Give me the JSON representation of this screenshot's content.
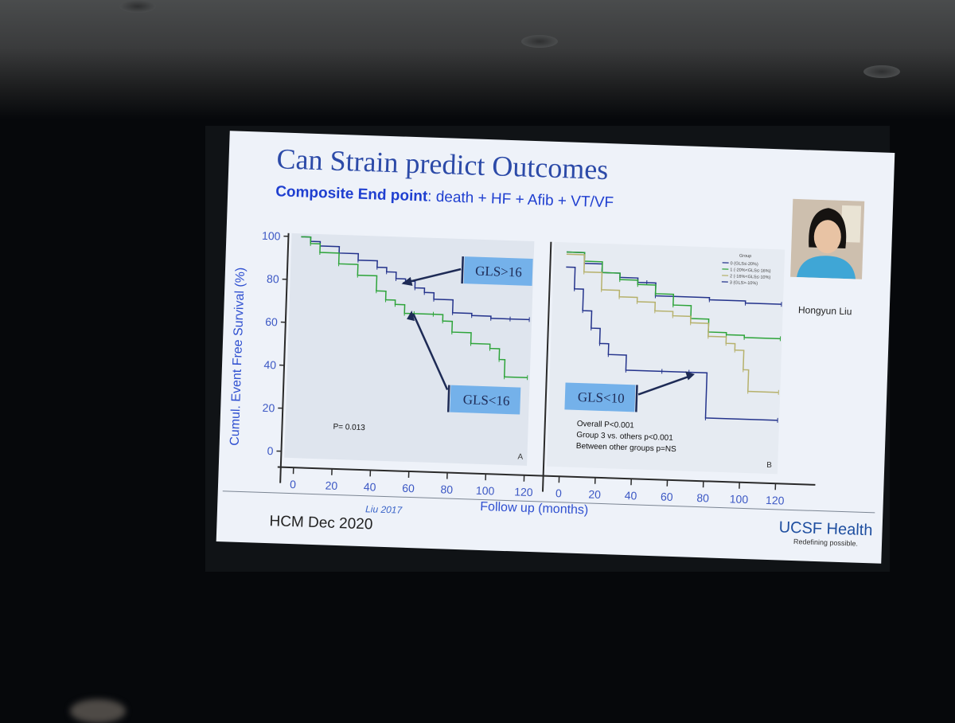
{
  "slide": {
    "title": "Can Strain predict Outcomes",
    "subtitle_bold": "Composite End point",
    "subtitle_rest": ": death + HF + Afib + VT/VF",
    "presenter_name": "Hongyun Liu",
    "reference": "Liu 2017",
    "footer": "HCM Dec 2020",
    "logo_brand": "UCSF Health",
    "logo_tagline": "Redefining possible."
  },
  "colors": {
    "blue_series": "#24338c",
    "green_series": "#2ea43a",
    "tan_series": "#b6b16c",
    "callout_bg": "#74b1ea",
    "accent_text": "#2e4fd0"
  },
  "chart_data": [
    {
      "type": "line",
      "subtype": "kaplan-meier",
      "panel_label": "A",
      "ylabel": "Cumul. Event Free Survival (%)",
      "xlabel": "Follow up (months)",
      "xlim": [
        0,
        120
      ],
      "ylim": [
        0,
        100
      ],
      "xticks": [
        0,
        20,
        40,
        60,
        80,
        100,
        120
      ],
      "yticks": [
        0,
        20,
        40,
        60,
        80,
        100
      ],
      "annotation": "P= 0.013",
      "callouts": [
        "GLS>16",
        "GLS<16"
      ],
      "series": [
        {
          "name": "GLS>16",
          "color": "#24338c",
          "points": [
            [
              0,
              100
            ],
            [
              5,
              98
            ],
            [
              10,
              96
            ],
            [
              20,
              93
            ],
            [
              30,
              90
            ],
            [
              40,
              87
            ],
            [
              45,
              85
            ],
            [
              50,
              82
            ],
            [
              55,
              81
            ],
            [
              60,
              78
            ],
            [
              65,
              76
            ],
            [
              70,
              73
            ],
            [
              80,
              67
            ],
            [
              90,
              66
            ],
            [
              100,
              65
            ],
            [
              110,
              65
            ],
            [
              120,
              65
            ]
          ]
        },
        {
          "name": "GLS<16",
          "color": "#2ea43a",
          "points": [
            [
              0,
              100
            ],
            [
              5,
              97
            ],
            [
              10,
              93
            ],
            [
              20,
              88
            ],
            [
              30,
              83
            ],
            [
              40,
              76
            ],
            [
              45,
              72
            ],
            [
              50,
              70
            ],
            [
              55,
              66
            ],
            [
              60,
              66
            ],
            [
              70,
              66
            ],
            [
              75,
              63
            ],
            [
              80,
              58
            ],
            [
              90,
              53
            ],
            [
              100,
              51
            ],
            [
              105,
              46
            ],
            [
              108,
              38
            ],
            [
              120,
              38
            ]
          ]
        }
      ]
    },
    {
      "type": "line",
      "subtype": "kaplan-meier",
      "panel_label": "B",
      "xlim": [
        0,
        120
      ],
      "ylim": [
        0,
        100
      ],
      "xticks": [
        0,
        20,
        40,
        60,
        80,
        100,
        120
      ],
      "legend_title": "Group",
      "legend": [
        "0 (GLS≤-20%)",
        "1 (-20%<GLS≤-16%)",
        "2 (-16%<GLS≤-10%)",
        "3 (GLS>-10%)"
      ],
      "annotations": [
        "Overall P<0.001",
        "Group 3 vs. others p<0.001",
        "Between other groups  p=NS"
      ],
      "callouts": [
        "GLS<10"
      ],
      "series": [
        {
          "name": "0 (GLS≤-20%)",
          "color": "#24338c",
          "points": [
            [
              0,
              97
            ],
            [
              10,
              92
            ],
            [
              20,
              88
            ],
            [
              30,
              86
            ],
            [
              40,
              84
            ],
            [
              45,
              84
            ],
            [
              50,
              78
            ],
            [
              60,
              78
            ],
            [
              80,
              77
            ],
            [
              100,
              76
            ],
            [
              120,
              76
            ]
          ]
        },
        {
          "name": "1 (-20%<GLS≤-16%)",
          "color": "#2ea43a",
          "points": [
            [
              0,
              97
            ],
            [
              10,
              93
            ],
            [
              20,
              88
            ],
            [
              30,
              85
            ],
            [
              40,
              83
            ],
            [
              50,
              79
            ],
            [
              60,
              74
            ],
            [
              70,
              68
            ],
            [
              80,
              62
            ],
            [
              90,
              61
            ],
            [
              100,
              60
            ],
            [
              120,
              60
            ]
          ]
        },
        {
          "name": "2 (-16%<GLS≤-10%)",
          "color": "#b6b16c",
          "points": [
            [
              0,
              96
            ],
            [
              10,
              88
            ],
            [
              20,
              80
            ],
            [
              30,
              77
            ],
            [
              40,
              75
            ],
            [
              50,
              71
            ],
            [
              60,
              69
            ],
            [
              70,
              66
            ],
            [
              80,
              60
            ],
            [
              90,
              57
            ],
            [
              95,
              54
            ],
            [
              100,
              45
            ],
            [
              103,
              35
            ],
            [
              120,
              35
            ]
          ]
        },
        {
          "name": "3 (GLS>-10%)",
          "color": "#24338c",
          "points": [
            [
              0,
              90
            ],
            [
              5,
              80
            ],
            [
              10,
              70
            ],
            [
              15,
              62
            ],
            [
              20,
              55
            ],
            [
              25,
              50
            ],
            [
              35,
              43
            ],
            [
              55,
              43
            ],
            [
              70,
              43
            ],
            [
              80,
              22
            ],
            [
              120,
              22
            ]
          ]
        }
      ]
    }
  ]
}
